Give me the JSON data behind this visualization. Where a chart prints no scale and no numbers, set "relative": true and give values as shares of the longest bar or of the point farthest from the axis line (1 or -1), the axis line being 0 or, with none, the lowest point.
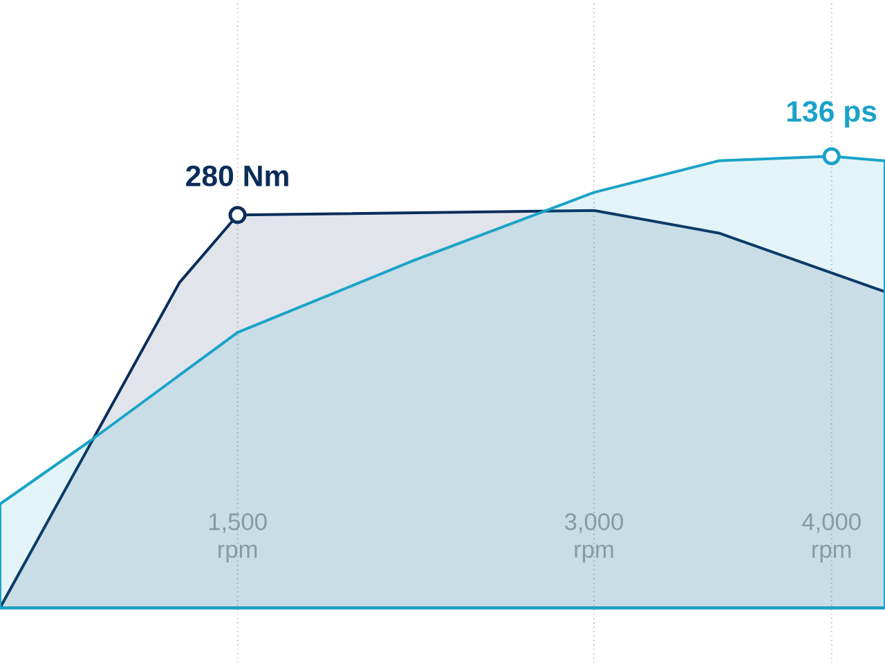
{
  "chart_data": {
    "type": "area",
    "relative": true,
    "xlim": [
      500,
      4225
    ],
    "xticks": [
      {
        "value": 1500,
        "label": "1,500 rpm"
      },
      {
        "value": 3000,
        "label": "3,000 rpm"
      },
      {
        "value": 4000,
        "label": "4,000 rpm"
      }
    ],
    "grid": "x",
    "series": [
      {
        "color": "#0b2d5b",
        "x": [
          500,
          1255,
          1500,
          3000,
          3525,
          4225
        ],
        "values": [
          0,
          0.72,
          0.87,
          0.88,
          0.83,
          0.7
        ]
      },
      {
        "color": "#1aa3c8",
        "x": [
          500,
          880,
          1500,
          2245,
          3000,
          3525,
          4000,
          4225
        ],
        "values": [
          0.23,
          0.37,
          0.61,
          0.77,
          0.92,
          0.99,
          1,
          0.99
        ]
      }
    ],
    "annotations": [
      {
        "text": "280 Nm",
        "x": 1500,
        "y": 0.87
      },
      {
        "text": "136 ps",
        "x": 4000,
        "y": 1
      }
    ]
  }
}
